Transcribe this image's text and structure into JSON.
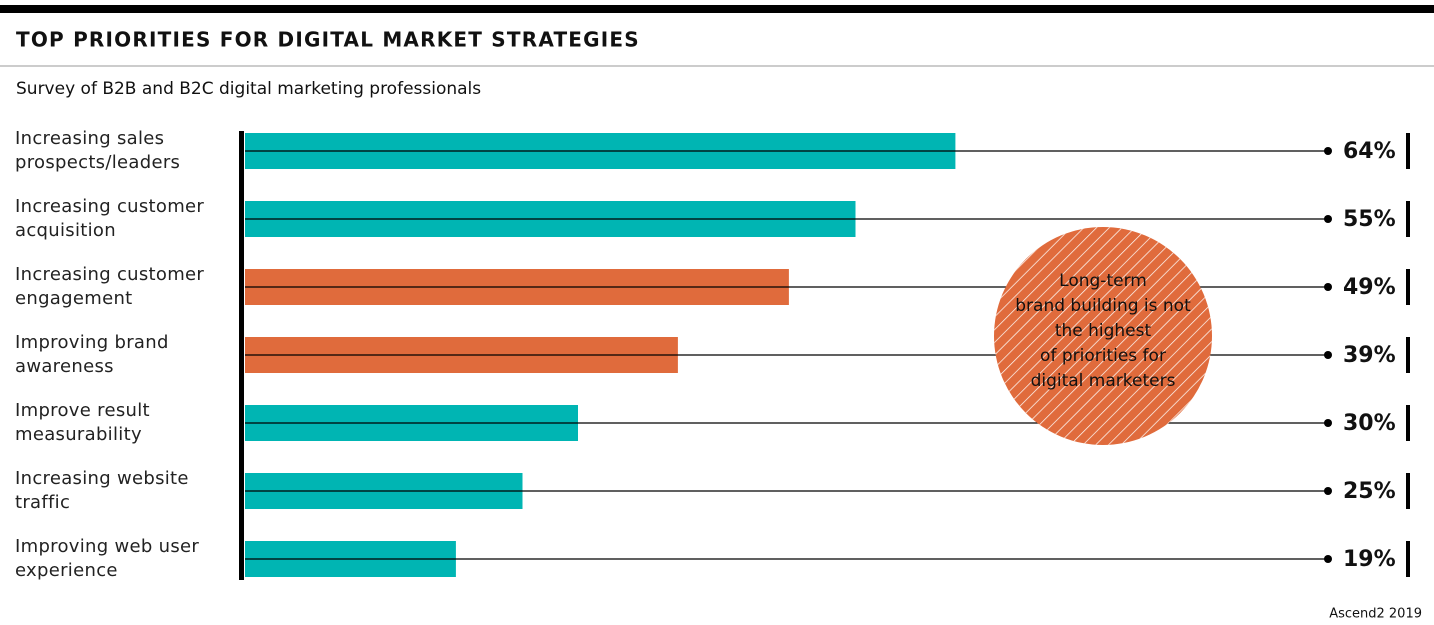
{
  "chart_data": {
    "type": "hbar",
    "title": "TOP PRIORITIES FOR DIGITAL MARKET STRATEGIES",
    "subtitle": "Survey of B2B and B2C digital marketing professionals",
    "categories": [
      "Increasing sales prospects/leaders",
      "Increasing customer acquisition",
      "Increasing customer engagement",
      "Improving brand awareness",
      "Improve result measurability",
      "Increasing website traffic",
      "Improving web user experience"
    ],
    "values": [
      64,
      55,
      49,
      39,
      30,
      25,
      19
    ],
    "value_labels": [
      "64%",
      "55%",
      "49%",
      "39%",
      "30%",
      "25%",
      "19%"
    ],
    "colors": [
      "#00b5b3",
      "#00b5b3",
      "#e06b3c",
      "#e06b3c",
      "#00b5b3",
      "#00b5b3",
      "#00b5b3"
    ],
    "annotation": [
      "Long-term",
      "brand building is not",
      "the highest",
      "of priorities for",
      "digital marketers"
    ],
    "annotation_color": "#e06b3c",
    "source": "Ascend2 2019"
  }
}
